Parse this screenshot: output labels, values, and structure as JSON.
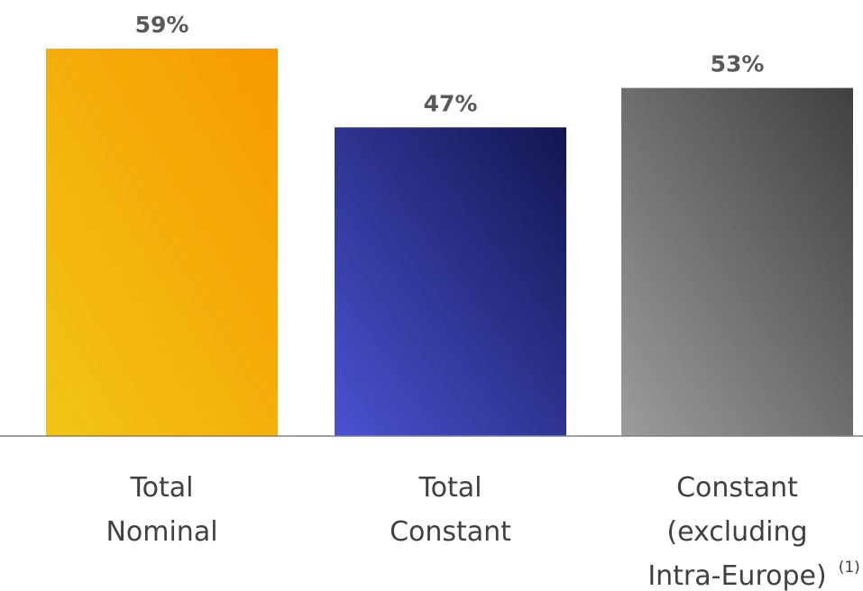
{
  "chart_data": {
    "type": "bar",
    "categories": [
      {
        "lines": [
          "Total",
          "Nominal"
        ],
        "footnote": ""
      },
      {
        "lines": [
          "Total",
          "Constant"
        ],
        "footnote": ""
      },
      {
        "lines": [
          "Constant",
          "(excluding",
          "Intra-Europe)"
        ],
        "footnote": "(1)"
      }
    ],
    "values": [
      59,
      47,
      53
    ],
    "value_labels": [
      "59%",
      "47%",
      "53%"
    ],
    "colors": [
      {
        "light": "#F2C417",
        "dark": "#F79A00"
      },
      {
        "light": "#4A52D1",
        "dark": "#111650"
      },
      {
        "light": "#9C9C9C",
        "dark": "#404040"
      }
    ],
    "ylim": [
      0,
      72
    ],
    "grid": false,
    "legend": "none"
  }
}
